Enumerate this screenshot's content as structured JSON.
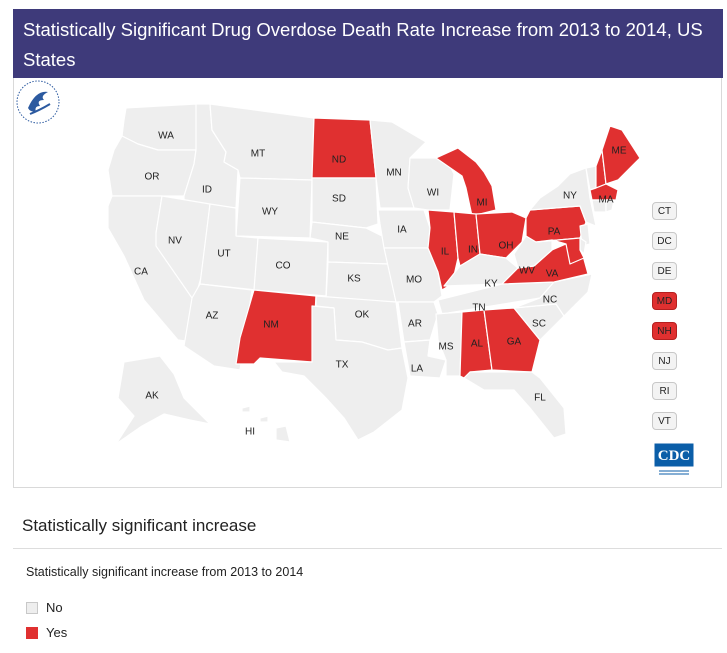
{
  "title": "Statistically Significant Drug Overdose Death Rate Increase from 2013 to 2014, US States",
  "colors": {
    "no": "#eeeeee",
    "yes": "#e03030",
    "header": "#3e3a7a"
  },
  "states": {
    "WA": "No",
    "OR": "No",
    "CA": "No",
    "ID": "No",
    "NV": "No",
    "MT": "No",
    "WY": "No",
    "UT": "No",
    "AZ": "No",
    "CO": "No",
    "NM": "Yes",
    "ND": "Yes",
    "SD": "No",
    "NE": "No",
    "KS": "No",
    "OK": "No",
    "TX": "No",
    "MN": "No",
    "IA": "No",
    "MO": "No",
    "AR": "No",
    "LA": "No",
    "WI": "No",
    "IL": "Yes",
    "MI": "Yes",
    "IN": "Yes",
    "OH": "Yes",
    "KY": "No",
    "TN": "No",
    "MS": "No",
    "AL": "Yes",
    "GA": "Yes",
    "FL": "No",
    "SC": "No",
    "NC": "No",
    "VA": "Yes",
    "WV": "No",
    "PA": "Yes",
    "NY": "No",
    "VT": "No",
    "NH": "Yes",
    "ME": "Yes",
    "MA": "Yes",
    "RI": "No",
    "CT": "No",
    "NJ": "No",
    "DE": "No",
    "MD": "Yes",
    "AK": "No",
    "HI": "No"
  },
  "small_states": [
    {
      "abbr": "CT",
      "value": "No"
    },
    {
      "abbr": "DC",
      "value": "No"
    },
    {
      "abbr": "DE",
      "value": "No"
    },
    {
      "abbr": "MD",
      "value": "Yes"
    },
    {
      "abbr": "NH",
      "value": "Yes"
    },
    {
      "abbr": "NJ",
      "value": "No"
    },
    {
      "abbr": "RI",
      "value": "No"
    },
    {
      "abbr": "VT",
      "value": "No"
    }
  ],
  "logos": {
    "cdc": "CDC",
    "hhs": "hhs-eagle-icon"
  },
  "legend": {
    "title": "Statistically significant increase",
    "subtitle": "Statistically significant increase from 2013 to 2014",
    "items": [
      {
        "label": "No",
        "value": "No"
      },
      {
        "label": "Yes",
        "value": "Yes"
      }
    ]
  }
}
